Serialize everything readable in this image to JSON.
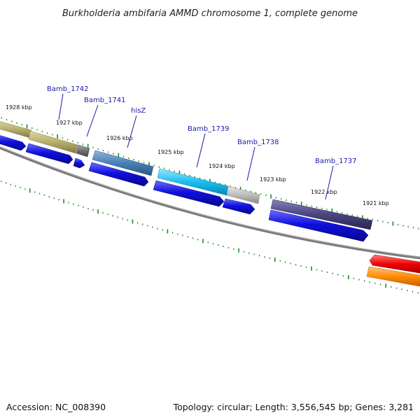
{
  "title": "Burkholderia ambifaria AMMD chromosome 1, complete genome",
  "footer": {
    "accession": "Accession: NC_008390",
    "info": "Topology: circular; Length: 3,556,545 bp; Genes: 3,281"
  },
  "scale_labels": [
    "1928 kbp",
    "1927 kbp",
    "1926 kbp",
    "1925 kbp",
    "1924 kbp",
    "1923 kbp",
    "1922 kbp",
    "1921 kbp"
  ],
  "gene_labels": [
    "Bamb_1742",
    "Bamb_1741",
    "hisZ",
    "Bamb_1739",
    "Bamb_1738",
    "Bamb_1737"
  ],
  "colors": {
    "backbone": "#7a7a7a",
    "tick": "#1e8a1e",
    "cds": "#1010e0",
    "olive": "#b7b06c",
    "grey": "#6f6f6f",
    "steel": "#4a7fb6",
    "cyan": "#1cbdf0",
    "lightgrey": "#bdbdbd",
    "indigo": "#4a4580",
    "red": "#f00000",
    "orange": "#ff8c00"
  }
}
